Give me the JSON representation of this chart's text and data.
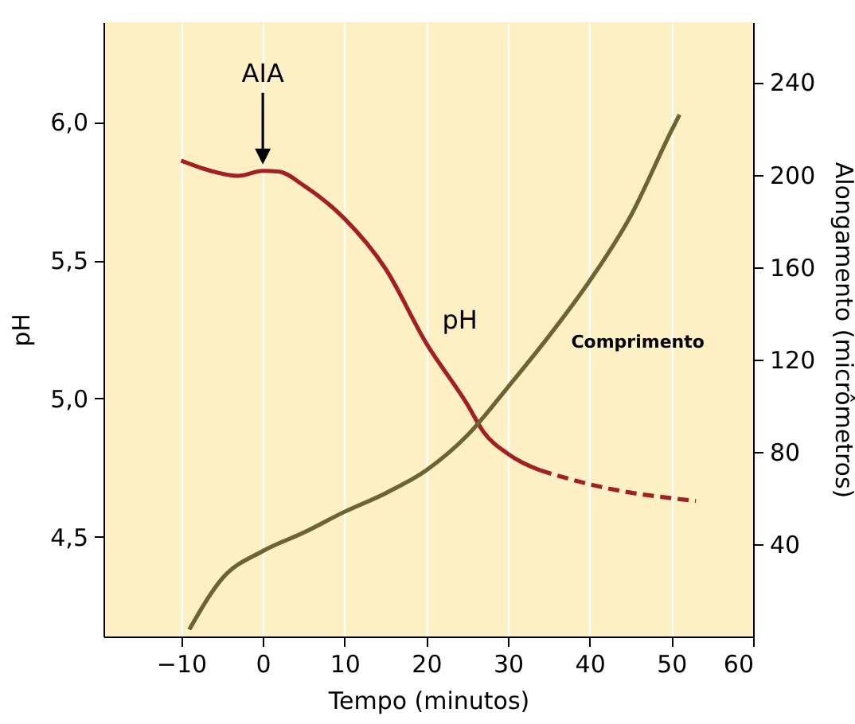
{
  "chart_data": {
    "type": "line",
    "xlabel": "Tempo (minutos)",
    "ylabel": "pH",
    "y2label": "Alongamento (micrômetros)",
    "xlim": [
      -19.5,
      60
    ],
    "xticks": [
      {
        "value": -10,
        "label": "−10"
      },
      0,
      10,
      20,
      30,
      40,
      50,
      60
    ],
    "ylim": [
      4.14,
      6.36
    ],
    "yticks": [
      {
        "value": 4.5,
        "label": "4,5"
      },
      {
        "value": 5,
        "label": "5,0"
      },
      {
        "value": 5.5,
        "label": "5,5"
      },
      {
        "value": 6,
        "label": "6,0"
      }
    ],
    "y2lim": [
      0,
      266
    ],
    "y2ticks": [
      40,
      80,
      120,
      160,
      200,
      240
    ],
    "grid": "x",
    "marker": "none",
    "series": [
      {
        "name": "pH",
        "color": "#a31f24",
        "line_style": "solid",
        "x": [
          -10,
          -6,
          -3,
          0,
          2,
          5,
          10,
          15,
          20,
          25,
          27,
          30,
          34
        ],
        "values": [
          5.86,
          5.82,
          5.805,
          5.823,
          5.82,
          5.77,
          5.65,
          5.47,
          5.2,
          4.98,
          4.88,
          4.8,
          4.74
        ]
      },
      {
        "color": "#a31f24",
        "line_style": "dashed",
        "x": [
          34,
          40,
          45,
          50,
          53
        ],
        "values": [
          4.74,
          4.69,
          4.66,
          4.64,
          4.63
        ]
      },
      {
        "name": "Comprimento",
        "color": "#6b6433",
        "line_style": "solid",
        "axis": "y2",
        "x": [
          -9,
          -5,
          0,
          5,
          10,
          15,
          20,
          25,
          30,
          35,
          40,
          45,
          50,
          51
        ],
        "values": [
          3,
          25,
          37,
          45,
          54,
          62,
          72,
          87,
          108,
          130,
          154,
          182,
          219,
          226
        ]
      }
    ],
    "annotations": [
      "AIA"
    ]
  }
}
